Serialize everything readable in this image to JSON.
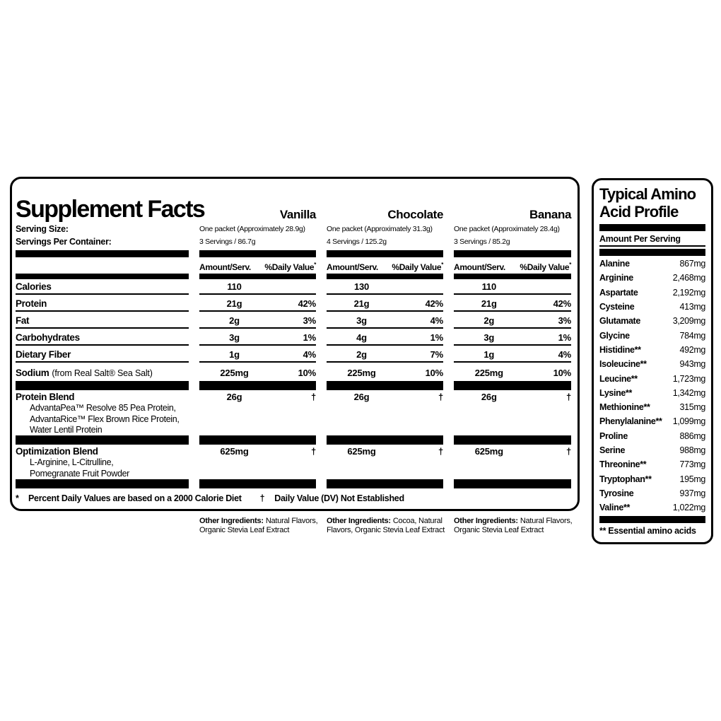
{
  "colors": {
    "ink": "#000000",
    "paper": "#ffffff"
  },
  "main_panel": {
    "title": "Supplement Facts",
    "serving_size_label": "Serving Size:",
    "servings_per_container_label": "Servings Per Container:",
    "col_header_amount": "Amount/Serv.",
    "col_header_dv": "%Daily Value",
    "col_header_dv_sup": "*",
    "flavors": [
      {
        "name": "Vanilla",
        "serving_size": "One packet (Approximately 28.9g)",
        "servings_per_container": "3 Servings / 86.7g"
      },
      {
        "name": "Chocolate",
        "serving_size": "One packet (Approximately 31.3g)",
        "servings_per_container": "4 Servings / 125.2g"
      },
      {
        "name": "Banana",
        "serving_size": "One packet (Approximately 28.4g)",
        "servings_per_container": "3 Servings / 85.2g"
      }
    ],
    "rows": [
      {
        "label": "Calories",
        "values": [
          "110",
          "130",
          "110"
        ],
        "dv": [
          "",
          "",
          ""
        ]
      },
      {
        "label": "Protein",
        "values": [
          "21g",
          "21g",
          "21g"
        ],
        "dv": [
          "42%",
          "42%",
          "42%"
        ]
      },
      {
        "label": "Fat",
        "values": [
          "2g",
          "3g",
          "2g"
        ],
        "dv": [
          "3%",
          "4%",
          "3%"
        ]
      },
      {
        "label": "Carbohydrates",
        "values": [
          "3g",
          "4g",
          "3g"
        ],
        "dv": [
          "1%",
          "1%",
          "1%"
        ]
      },
      {
        "label": "Dietary Fiber",
        "values": [
          "1g",
          "2g",
          "1g"
        ],
        "dv": [
          "4%",
          "7%",
          "4%"
        ]
      },
      {
        "label": "Sodium",
        "note": "(from Real Salt® Sea Salt)",
        "values": [
          "225mg",
          "225mg",
          "225mg"
        ],
        "dv": [
          "10%",
          "10%",
          "10%"
        ]
      }
    ],
    "blends": [
      {
        "label": "Protein Blend",
        "ingredients": [
          "AdvantaPea™ Resolve 85 Pea Protein,",
          "AdvantaRice™ Flex Brown Rice Protein,",
          "Water Lentil Protein"
        ],
        "values": [
          "26g",
          "26g",
          "26g"
        ],
        "dagger": "†"
      },
      {
        "label": "Optimization Blend",
        "ingredients": [
          "L-Arginine, L-Citrulline,",
          "Pomegranate Fruit Powder"
        ],
        "values": [
          "625mg",
          "625mg",
          "625mg"
        ],
        "dagger": "†"
      }
    ],
    "footnote": {
      "star": "*",
      "daily_values_text": "Percent Daily Values are based on a 2000 Calorie Diet",
      "dagger": "†",
      "dv_not_established_text": "Daily Value (DV) Not Established"
    }
  },
  "other_ingredients": [
    {
      "label": "Other Ingredients:",
      "text": "Natural Flavors, Organic Stevia Leaf Extract"
    },
    {
      "label": "Other Ingredients:",
      "text": "Cocoa, Natural Flavors, Organic Stevia Leaf Extract"
    },
    {
      "label": "Other Ingredients:",
      "text": "Natural Flavors, Organic Stevia Leaf Extract"
    }
  ],
  "amino_panel": {
    "title_line1": "Typical Amino",
    "title_line2": "Acid Profile",
    "header": "Amount Per Serving",
    "rows": [
      {
        "name": "Alanine",
        "value": "867mg"
      },
      {
        "name": "Arginine",
        "value": "2,468mg"
      },
      {
        "name": "Aspartate",
        "value": "2,192mg"
      },
      {
        "name": "Cysteine",
        "value": "413mg"
      },
      {
        "name": "Glutamate",
        "value": "3,209mg"
      },
      {
        "name": "Glycine",
        "value": "784mg"
      },
      {
        "name": "Histidine**",
        "value": "492mg"
      },
      {
        "name": "Isoleucine**",
        "value": "943mg"
      },
      {
        "name": "Leucine**",
        "value": "1,723mg"
      },
      {
        "name": "Lysine**",
        "value": "1,342mg"
      },
      {
        "name": "Methionine**",
        "value": "315mg"
      },
      {
        "name": "Phenylalanine**",
        "value": "1,099mg"
      },
      {
        "name": "Proline",
        "value": "886mg"
      },
      {
        "name": "Serine",
        "value": "988mg"
      },
      {
        "name": "Threonine**",
        "value": "773mg"
      },
      {
        "name": "Tryptophan**",
        "value": "195mg"
      },
      {
        "name": "Tyrosine",
        "value": "937mg"
      },
      {
        "name": "Valine**",
        "value": "1,022mg"
      }
    ],
    "footnote": "** Essential amino acids"
  }
}
